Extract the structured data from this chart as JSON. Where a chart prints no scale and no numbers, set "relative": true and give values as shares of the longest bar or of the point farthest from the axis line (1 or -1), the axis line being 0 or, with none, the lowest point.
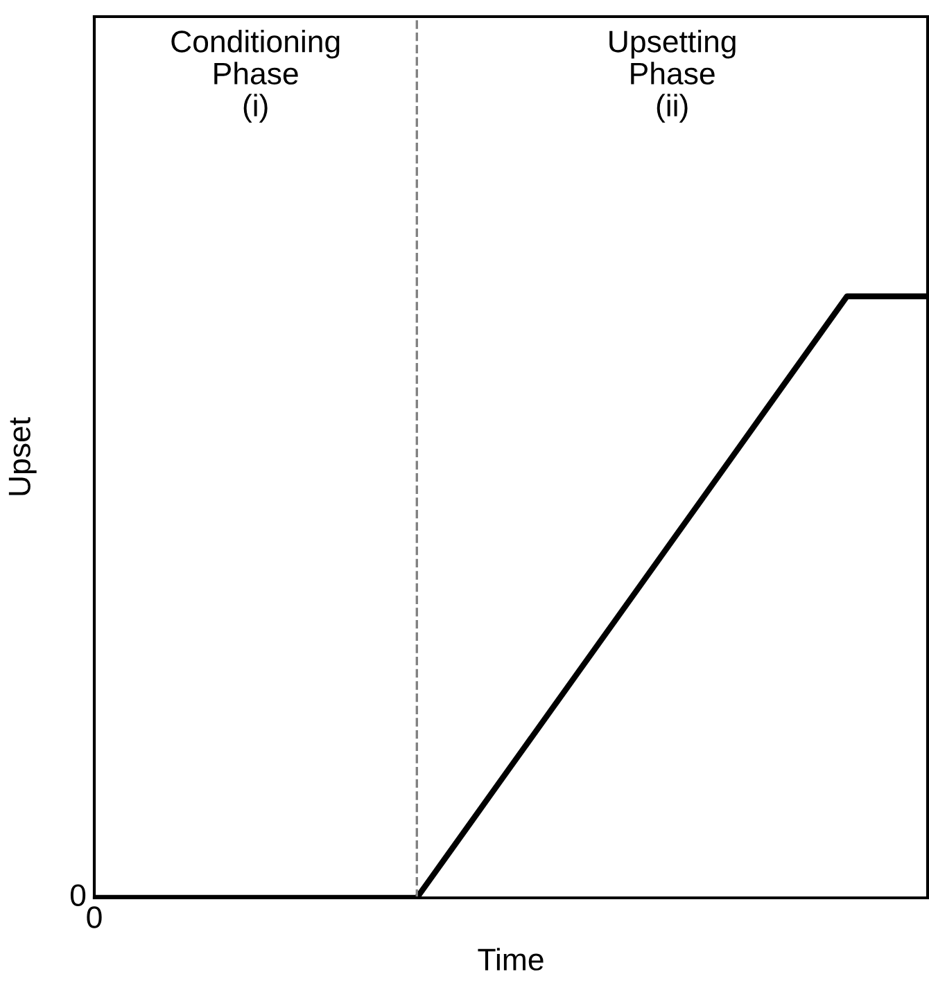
{
  "chart_data": {
    "type": "line",
    "xlabel": "Time",
    "ylabel": "Upset",
    "relative": true,
    "categories": [
      null,
      null,
      null,
      null,
      null,
      null,
      null,
      null,
      null,
      null,
      null,
      null,
      null,
      null,
      null,
      null,
      null,
      null,
      null,
      null,
      null,
      null,
      null,
      null,
      null,
      null,
      null,
      null,
      null,
      null,
      null,
      null
    ],
    "series": [
      {
        "color": "#000000",
        "values": [
          0,
          0,
          0,
          0,
          0,
          0,
          0,
          0,
          0,
          0,
          0,
          0,
          0,
          0.0625,
          0.125,
          0.1875,
          0.25,
          0.3125,
          0.375,
          0.4375,
          0.5,
          0.5625,
          0.625,
          0.6875,
          0.75,
          0.8125,
          0.875,
          0.9375,
          1,
          1,
          1,
          1
        ]
      }
    ],
    "annotations": [
      "0",
      "0",
      "Conditioning\nPhase\n(i)",
      "Upsetting\nPhase\n(ii)"
    ],
    "legend": false,
    "marker": "none",
    "line_style": "solid"
  }
}
